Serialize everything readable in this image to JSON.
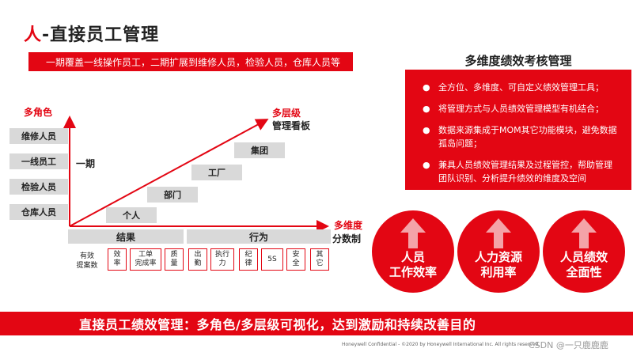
{
  "title": {
    "prefix": "人",
    "rest": "-直接员工管理"
  },
  "banner_text": "一期覆盖一线操作员工，二期扩展到维修人员，检验人员，仓库人员等",
  "diagram": {
    "y_axis_label": "多角色",
    "phase_label": "一期",
    "roles": [
      "维修人员",
      "一线员工",
      "检验人员",
      "仓库人员"
    ],
    "diagonal_label_line1": "多层级",
    "diagonal_label_line2": "管理看板",
    "levels": [
      "个人",
      "部门",
      "工厂",
      "集团"
    ],
    "x_axis_label_line1": "多维度",
    "x_axis_label_line2": "分数制",
    "result_label": "结果",
    "behavior_label": "行为",
    "metrics_static": [
      "有效",
      "提案数"
    ],
    "metrics": [
      {
        "line1": "效",
        "line2": "率"
      },
      {
        "line1": "工单",
        "line2": "完成率"
      },
      {
        "line1": "质",
        "line2": "量"
      },
      {
        "line1": "出",
        "line2": "勤"
      },
      {
        "line1": "执行",
        "line2": "力"
      },
      {
        "line1": "纪",
        "line2": "律"
      },
      {
        "line1": "5S",
        "line2": ""
      },
      {
        "line1": "安",
        "line2": "全"
      },
      {
        "line1": "其",
        "line2": "它"
      }
    ]
  },
  "right_panel": {
    "title": "多维度绩效考核管理",
    "bullets": [
      "全方位、多维度、可自定义绩效管理工具；",
      "将管理方式与人员绩效管理模型有机结合；",
      "数据来源集成于MOM其它功能模块，避免数据孤岛问题；",
      "兼具人员绩效管理结果及过程管控，帮助管理团队识别、分析提升绩效的维度及空间"
    ]
  },
  "circles": [
    {
      "line1": "人员",
      "line2": "工作效率"
    },
    {
      "line1": "人力资源",
      "line2": "利用率"
    },
    {
      "line1": "人员绩效",
      "line2": "全面性"
    }
  ],
  "bottom_banner": "直接员工绩效管理：多角色/多层级可视化，达到激励和持续改善目的",
  "footer_text": "Honeywell Confidential - ©2020 by Honeywell International Inc. All rights reserved.",
  "watermark": "CSDN @一只鹿鹿鹿",
  "colors": {
    "accent": "#e30613",
    "box_gray": "#d9d9d9"
  }
}
